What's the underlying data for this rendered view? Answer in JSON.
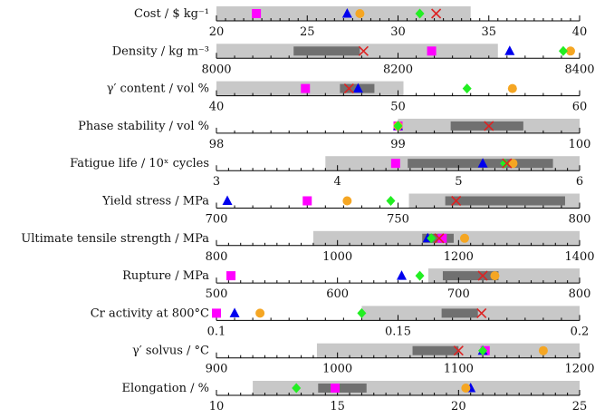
{
  "chart_data": {
    "type": "range-strip",
    "colors": {
      "light_band": "#c8c8c8",
      "dark_band": "#707070",
      "magenta_square": "#ff00ff",
      "blue_triangle": "#0000ee",
      "orange_circle": "#f5a623",
      "green_diamond": "#22ee22",
      "red_cross": "#dd2222"
    },
    "rows": [
      {
        "label": "Cost / $ kg⁻¹",
        "axis": {
          "min": 20,
          "max": 40,
          "ticks": [
            20,
            25,
            30,
            35,
            40
          ],
          "tick_labels": [
            "20",
            "25",
            "30",
            "35",
            "40"
          ]
        },
        "light_range": [
          20,
          34
        ],
        "dark_range": null,
        "markers": {
          "magenta_square": 22.2,
          "blue_triangle": 27.2,
          "orange_circle": 27.9,
          "green_diamond": 31.2,
          "red_cross": 32.1
        }
      },
      {
        "label": "Density / kg m⁻³",
        "axis": {
          "min": 8000,
          "max": 8400,
          "ticks": [
            8000,
            8200,
            8400
          ],
          "tick_labels": [
            "8000",
            "8200",
            "8400"
          ]
        },
        "light_range": [
          8000,
          8310
        ],
        "dark_range": [
          8085,
          8158
        ],
        "markers": {
          "magenta_square": 8237,
          "blue_triangle": 8323,
          "orange_circle": 8390,
          "green_diamond": 8382,
          "red_cross": 8162
        }
      },
      {
        "label": "γ′ content / vol %",
        "axis": {
          "min": 40,
          "max": 60,
          "ticks": [
            40,
            50,
            60
          ],
          "tick_labels": [
            "40",
            "50",
            "60"
          ]
        },
        "light_range": [
          40,
          50.3
        ],
        "dark_range": [
          46.8,
          48.7
        ],
        "markers": {
          "magenta_square": 44.9,
          "blue_triangle": 47.8,
          "orange_circle": 56.3,
          "green_diamond": 53.8,
          "red_cross": 47.3
        }
      },
      {
        "label": "Phase stability / vol %",
        "axis": {
          "min": 98,
          "max": 100,
          "ticks": [
            98,
            99,
            100
          ],
          "tick_labels": [
            "98",
            "99",
            "100"
          ]
        },
        "light_range": [
          99,
          100
        ],
        "dark_range": [
          99.29,
          99.69
        ],
        "markers": {
          "magenta_square": 99.0,
          "blue_triangle": 99.0,
          "orange_circle": 99.0,
          "green_diamond": 99.0,
          "red_cross": 99.5
        }
      },
      {
        "label": "Fatigue life / 10ˣ cycles",
        "axis": {
          "min": 3,
          "max": 6,
          "ticks": [
            3,
            4,
            5,
            6
          ],
          "tick_labels": [
            "3",
            "4",
            "5",
            "6"
          ]
        },
        "light_range": [
          3.9,
          6
        ],
        "dark_range": [
          4.58,
          5.78
        ],
        "markers": {
          "magenta_square": 4.48,
          "blue_triangle": 5.2,
          "orange_circle": 5.45,
          "green_diamond": 5.38,
          "red_cross": 5.4
        }
      },
      {
        "label": "Yield stress / MPa",
        "axis": {
          "min": 700,
          "max": 800,
          "ticks": [
            700,
            750,
            800
          ],
          "tick_labels": [
            "700",
            "750",
            "800"
          ]
        },
        "light_range": [
          753,
          800
        ],
        "dark_range": [
          763,
          796
        ],
        "markers": {
          "magenta_square": 725,
          "blue_triangle": 703,
          "orange_circle": 736,
          "green_diamond": 748,
          "red_cross": 766
        }
      },
      {
        "label": "Ultimate tensile strength / MPa",
        "axis": {
          "min": 800,
          "max": 1400,
          "ticks": [
            800,
            1000,
            1200,
            1400
          ],
          "tick_labels": [
            "800",
            "1000",
            "1200",
            "1400"
          ]
        },
        "light_range": [
          960,
          1400
        ],
        "dark_range": [
          1140,
          1192
        ],
        "markers": {
          "magenta_square": 1173,
          "blue_triangle": 1149,
          "orange_circle": 1210,
          "green_diamond": 1155,
          "red_cross": 1168
        }
      },
      {
        "label": "Rupture / MPa",
        "axis": {
          "min": 500,
          "max": 800,
          "ticks": [
            500,
            600,
            700,
            800
          ],
          "tick_labels": [
            "500",
            "600",
            "700",
            "800"
          ]
        },
        "light_range": [
          675,
          800
        ],
        "dark_range": [
          687,
          733
        ],
        "markers": {
          "magenta_square": 512,
          "blue_triangle": 653,
          "orange_circle": 730,
          "green_diamond": 668,
          "red_cross": 720
        }
      },
      {
        "label": "Cr activity at 800°C",
        "axis": {
          "min": 0.1,
          "max": 0.2,
          "ticks": [
            0.1,
            0.15,
            0.2
          ],
          "tick_labels": [
            "0.1",
            "0.15",
            "0.2"
          ]
        },
        "light_range": [
          0.14,
          0.2
        ],
        "dark_range": [
          0.162,
          0.172
        ],
        "markers": {
          "magenta_square": 0.1,
          "blue_triangle": 0.105,
          "orange_circle": 0.112,
          "green_diamond": 0.14,
          "red_cross": 0.173
        }
      },
      {
        "label": "γ′ solvus / °C",
        "axis": {
          "min": 900,
          "max": 1200,
          "ticks": [
            900,
            1000,
            1100,
            1200
          ],
          "tick_labels": [
            "900",
            "1000",
            "1100",
            "1200"
          ]
        },
        "light_range": [
          983,
          1200
        ],
        "dark_range": [
          1062,
          1100
        ],
        "markers": {
          "magenta_square": 1122,
          "blue_triangle": 1120,
          "orange_circle": 1170,
          "green_diamond": 1120,
          "red_cross": 1100
        }
      },
      {
        "label": "Elongation / %",
        "axis": {
          "min": 10,
          "max": 25,
          "ticks": [
            10,
            15,
            20,
            25
          ],
          "tick_labels": [
            "10",
            "15",
            "20",
            "25"
          ]
        },
        "light_range": [
          11.5,
          25
        ],
        "dark_range": [
          14.2,
          16.2
        ],
        "markers": {
          "magenta_square": 14.9,
          "blue_triangle": 20.5,
          "orange_circle": 20.3,
          "green_diamond": 13.3,
          "red_cross": null
        }
      }
    ]
  }
}
